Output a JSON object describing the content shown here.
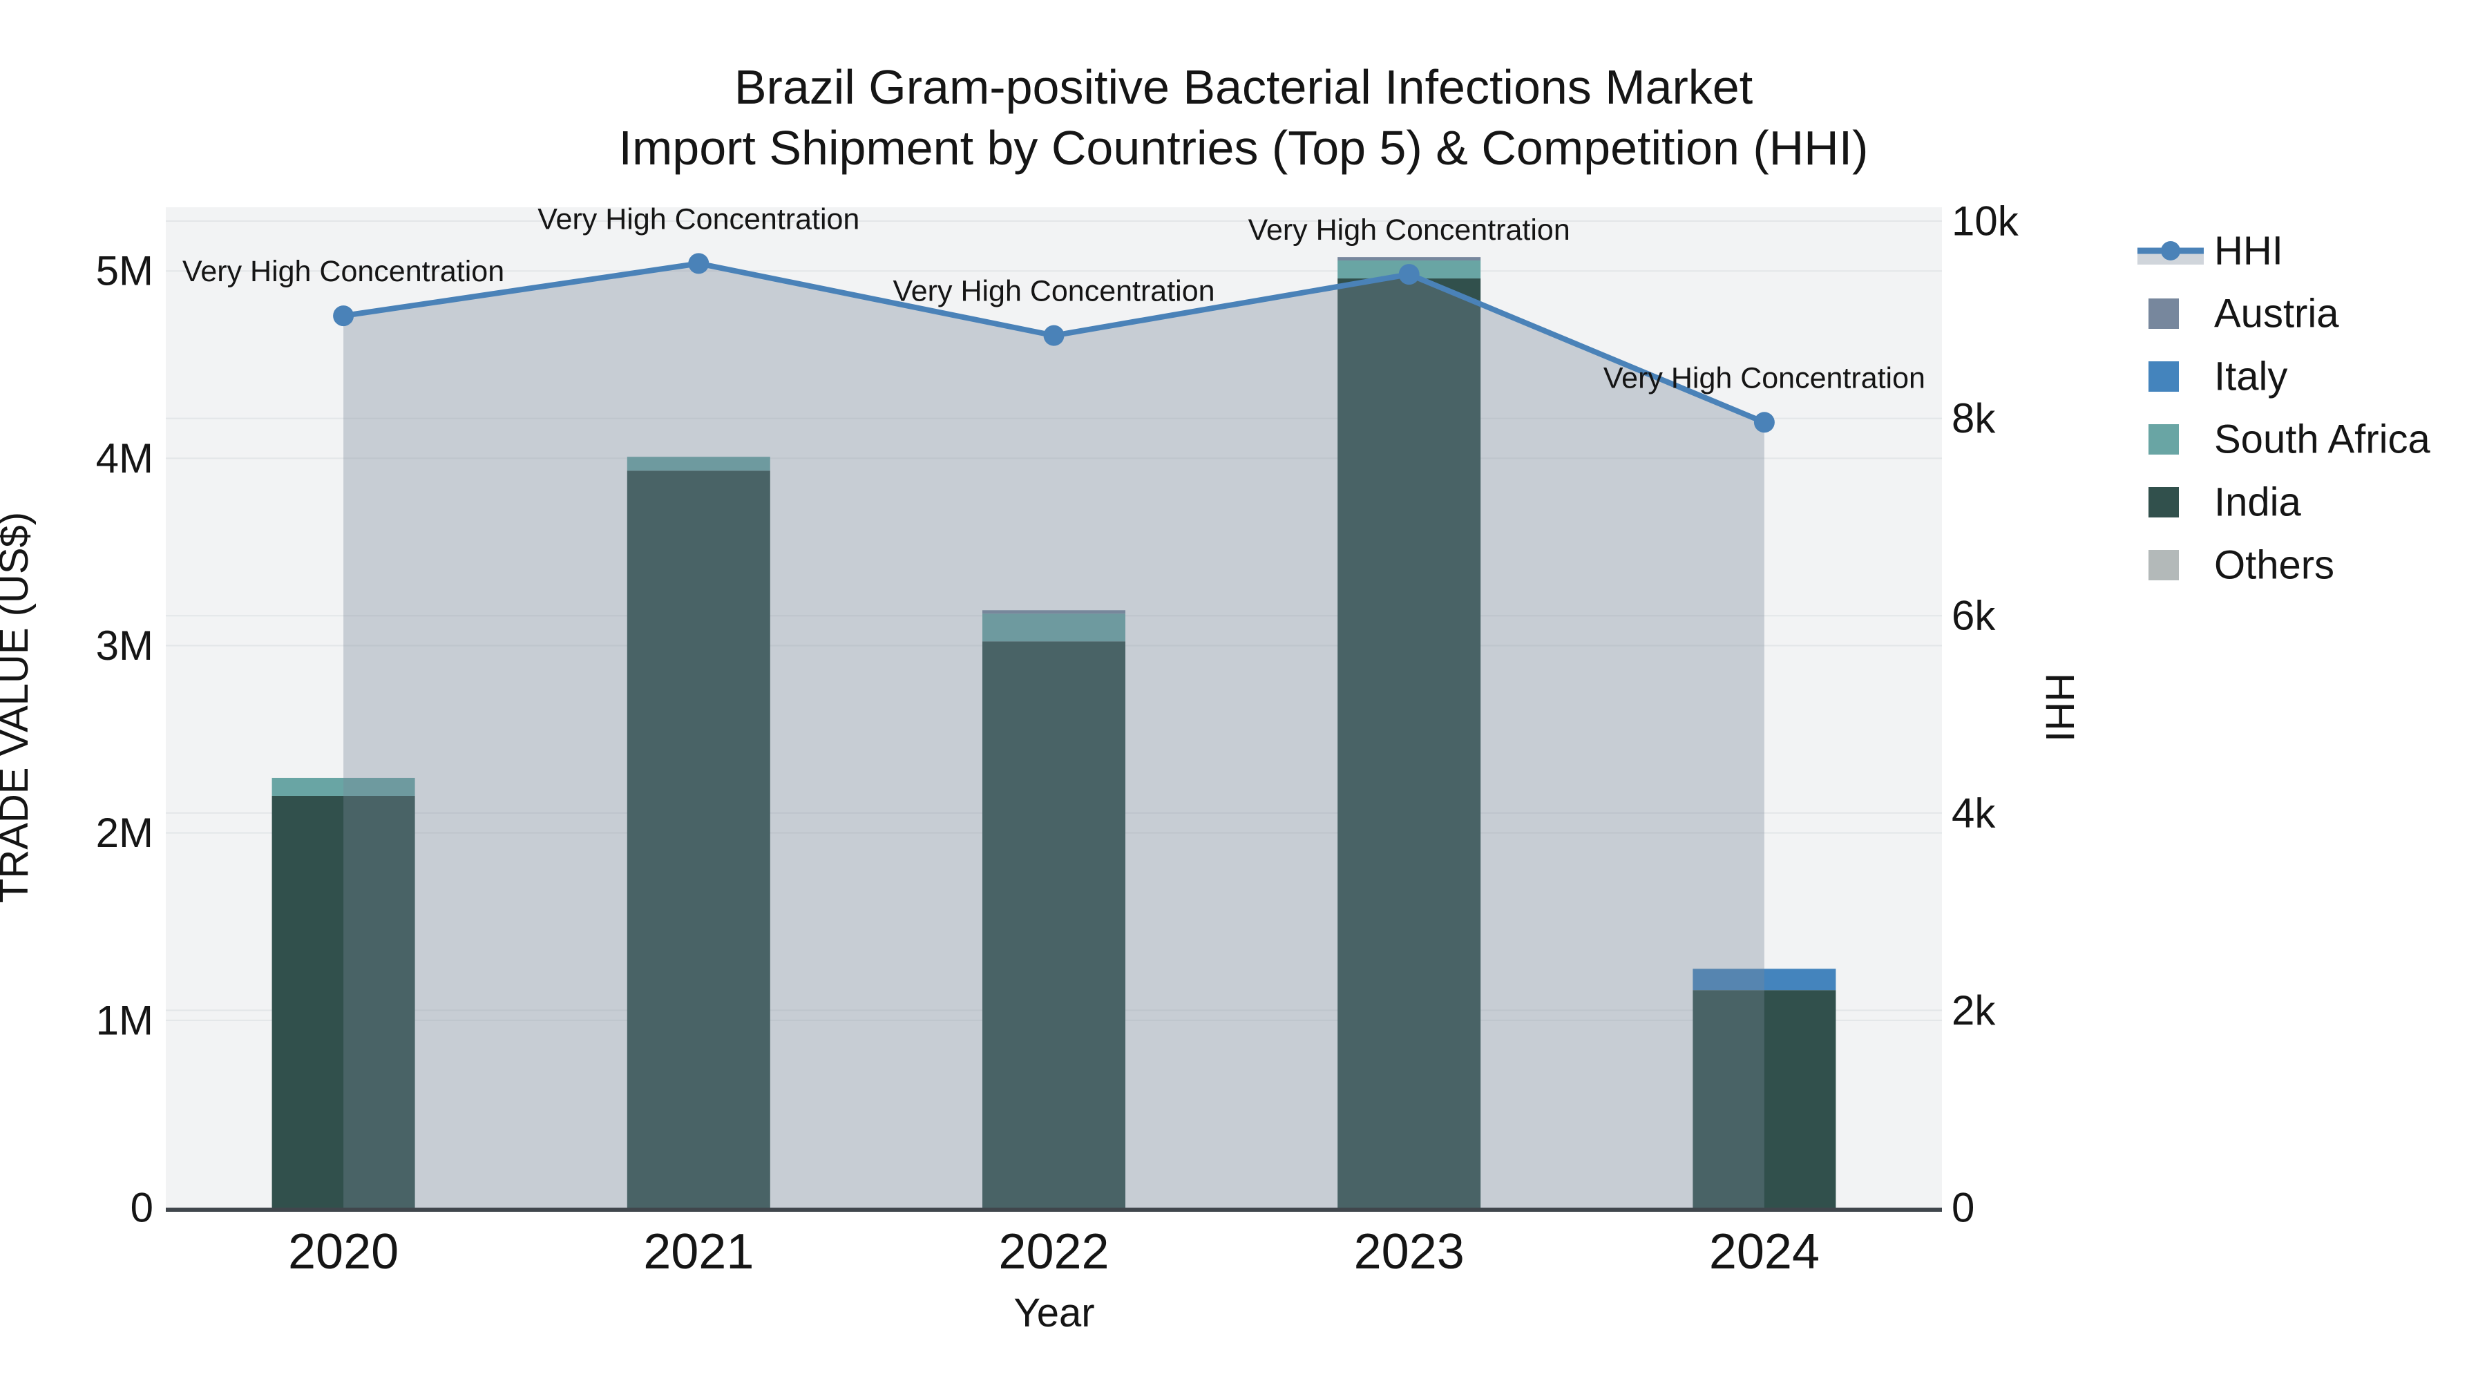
{
  "chart_data": {
    "type": "bar",
    "subtype": "stacked-bars-with-line",
    "title": "Brazil Gram-positive Bacterial Infections Market",
    "subtitle": "Import Shipment by Countries (Top 5) & Competition (HHI)",
    "xlabel": "Year",
    "ylabel_left": "TRADE VALUE (US$)",
    "ylabel_right": "HHI",
    "categories": [
      "2020",
      "2021",
      "2022",
      "2023",
      "2024"
    ],
    "bar_series": [
      {
        "name": "India",
        "color": "#31504c",
        "values": [
          2198000,
          3934000,
          3023000,
          4960000,
          1161000
        ]
      },
      {
        "name": "South Africa",
        "color": "#69a5a4",
        "values": [
          96000,
          74000,
          148000,
          96000,
          0
        ]
      },
      {
        "name": "Italy",
        "color": "#4484bd",
        "values": [
          0,
          0,
          0,
          0,
          114000
        ]
      },
      {
        "name": "Austria",
        "color": "#77879d",
        "values": [
          0,
          0,
          18000,
          18000,
          0
        ]
      },
      {
        "name": "Others",
        "color": "#b3b9b9",
        "values": [
          0,
          0,
          0,
          0,
          0
        ]
      }
    ],
    "line_series": {
      "name": "HHI",
      "values": [
        9040,
        9570,
        8840,
        9460,
        7960
      ],
      "line_color": "#4a82b8",
      "area_fill_color": "rgba(119,136,153,0.35)"
    },
    "annotation_label": "Very High Concentration",
    "annotations_per_point": [
      true,
      true,
      true,
      true,
      true
    ],
    "axis_left": {
      "range": [
        0,
        5340000
      ],
      "ticks": [
        {
          "value": 0,
          "label": "0"
        },
        {
          "value": 1000000,
          "label": "1M"
        },
        {
          "value": 2000000,
          "label": "2M"
        },
        {
          "value": 3000000,
          "label": "3M"
        },
        {
          "value": 4000000,
          "label": "4M"
        },
        {
          "value": 5000000,
          "label": "5M"
        }
      ]
    },
    "axis_right": {
      "range": [
        0,
        10140
      ],
      "ticks": [
        {
          "value": 0,
          "label": "0"
        },
        {
          "value": 2000,
          "label": "2k"
        },
        {
          "value": 4000,
          "label": "4k"
        },
        {
          "value": 6000,
          "label": "6k"
        },
        {
          "value": 8000,
          "label": "8k"
        },
        {
          "value": 10000,
          "label": "10k"
        }
      ]
    },
    "legend": {
      "position": "right",
      "items": [
        "HHI",
        "Austria",
        "Italy",
        "South Africa",
        "India",
        "Others"
      ]
    },
    "grid": true,
    "plot_bg_color": "#f2f3f4",
    "gridline_color": "#e3e6e8",
    "axisline_color": "#40464c",
    "text_color": "#151515"
  }
}
